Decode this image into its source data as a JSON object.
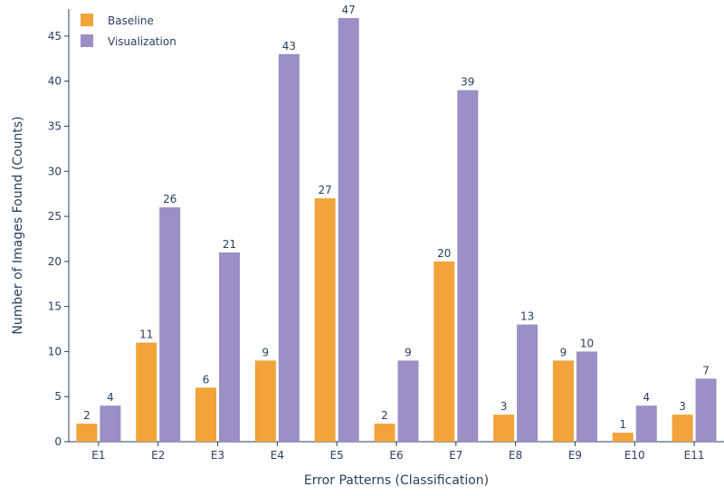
{
  "chart_data": {
    "type": "bar",
    "categories": [
      "E1",
      "E2",
      "E3",
      "E4",
      "E5",
      "E6",
      "E7",
      "E8",
      "E9",
      "E10",
      "E11"
    ],
    "series": [
      {
        "name": "Baseline",
        "color": "#f2a33a",
        "values": [
          2,
          11,
          6,
          9,
          27,
          2,
          20,
          3,
          9,
          1,
          3
        ]
      },
      {
        "name": "Visualization",
        "color": "#9b8fc6",
        "values": [
          4,
          26,
          21,
          43,
          47,
          9,
          39,
          13,
          10,
          4,
          7
        ]
      }
    ],
    "xlabel": "Error Patterns (Classification)",
    "ylabel": "Number of Images Found (Counts)",
    "ylim": [
      0,
      48
    ],
    "yticks": [
      0,
      5,
      10,
      15,
      20,
      25,
      30,
      35,
      40,
      45
    ],
    "grid": false,
    "legend_position": "top-left",
    "axis_color": "#2a3f5f"
  }
}
